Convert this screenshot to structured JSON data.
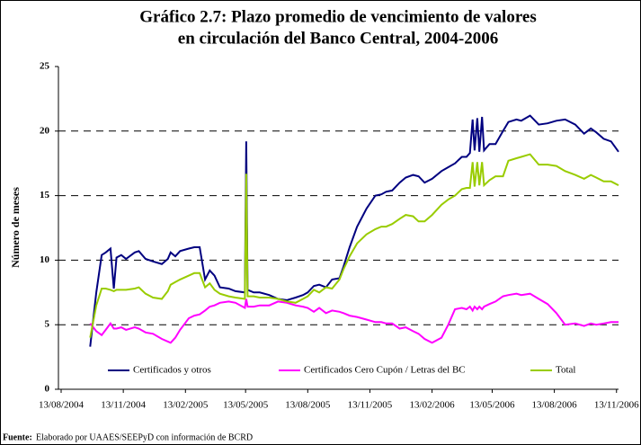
{
  "chart_data": {
    "type": "line",
    "title": [
      "Gráfico 2.7: Plazo promedio de vencimiento de valores",
      "en circulación del Banco Central, 2004-2006"
    ],
    "ylabel": "Número de meses",
    "source_label": "Fuente:",
    "source_text": "Elaborado por UAAES/SEEPyD con información de BCRD",
    "x": [
      "2004-09-25",
      "2004-10-04",
      "2004-10-12",
      "2004-10-18",
      "2004-10-25",
      "2004-10-30",
      "2004-11-03",
      "2004-11-10",
      "2004-11-17",
      "2004-11-30",
      "2004-12-06",
      "2004-12-16",
      "2004-12-27",
      "2005-01-09",
      "2005-01-18",
      "2005-01-22",
      "2005-01-29",
      "2005-02-05",
      "2005-02-18",
      "2005-02-26",
      "2005-03-06",
      "2005-03-14",
      "2005-03-21",
      "2005-03-28",
      "2005-04-05",
      "2005-04-18",
      "2005-04-28",
      "2005-05-12",
      "2005-05-14",
      "2005-05-16",
      "2005-05-25",
      "2005-06-03",
      "2005-06-17",
      "2005-06-30",
      "2005-07-13",
      "2005-07-26",
      "2005-08-06",
      "2005-08-13",
      "2005-08-22",
      "2005-08-30",
      "2005-09-09",
      "2005-09-18",
      "2005-09-29",
      "2005-10-05",
      "2005-10-14",
      "2005-10-25",
      "2005-11-08",
      "2005-11-21",
      "2005-11-30",
      "2005-12-07",
      "2005-12-16",
      "2005-12-27",
      "2006-01-05",
      "2006-01-16",
      "2006-01-24",
      "2006-02-02",
      "2006-02-13",
      "2006-02-27",
      "2006-03-09",
      "2006-03-19",
      "2006-03-29",
      "2006-04-05",
      "2006-04-10",
      "2006-04-14",
      "2006-04-17",
      "2006-04-21",
      "2006-04-24",
      "2006-04-28",
      "2006-05-01",
      "2006-05-09",
      "2006-05-18",
      "2006-05-29",
      "2006-06-06",
      "2006-06-18",
      "2006-06-25",
      "2006-07-08",
      "2006-07-21",
      "2006-08-03",
      "2006-08-16",
      "2006-08-29",
      "2006-09-13",
      "2006-09-26",
      "2006-10-06",
      "2006-10-14",
      "2006-10-25",
      "2006-11-05",
      "2006-11-16"
    ],
    "series": [
      {
        "name": "Certificados y otros",
        "color": "#000080",
        "values": [
          3.3,
          7.5,
          10.4,
          10.6,
          10.9,
          7.8,
          10.2,
          10.4,
          10.1,
          10.6,
          10.7,
          10.1,
          9.9,
          9.7,
          10.1,
          10.6,
          10.3,
          10.7,
          10.9,
          11.0,
          11.0,
          8.5,
          9.2,
          8.8,
          7.9,
          7.8,
          7.6,
          7.5,
          19.2,
          7.7,
          7.5,
          7.5,
          7.3,
          7.0,
          6.9,
          7.1,
          7.3,
          7.5,
          8.0,
          8.1,
          7.9,
          8.5,
          8.6,
          9.5,
          11.0,
          12.6,
          14.0,
          15.0,
          15.1,
          15.3,
          15.4,
          16.0,
          16.4,
          16.6,
          16.5,
          16.0,
          16.3,
          16.9,
          17.2,
          17.5,
          18.0,
          18.0,
          18.3,
          20.9,
          18.5,
          21.0,
          18.4,
          21.1,
          18.5,
          19.0,
          19.0,
          20.0,
          20.7,
          20.9,
          20.8,
          21.2,
          20.5,
          20.6,
          20.8,
          20.9,
          20.5,
          19.8,
          20.2,
          19.9,
          19.4,
          19.2,
          18.4
        ]
      },
      {
        "name": "Certificados Cero Cupón / Letras del BC",
        "color": "#ff00ff",
        "values": [
          5.1,
          4.5,
          4.2,
          4.6,
          5.1,
          4.7,
          4.7,
          4.8,
          4.6,
          4.8,
          4.7,
          4.4,
          4.3,
          3.9,
          3.7,
          3.6,
          4.0,
          4.6,
          5.5,
          5.7,
          5.8,
          6.1,
          6.4,
          6.5,
          6.7,
          6.8,
          6.7,
          6.3,
          7.0,
          6.4,
          6.4,
          6.5,
          6.5,
          6.8,
          6.7,
          6.5,
          6.4,
          6.3,
          6.0,
          6.3,
          5.9,
          6.1,
          6.0,
          5.9,
          5.7,
          5.6,
          5.4,
          5.2,
          5.2,
          5.1,
          5.1,
          4.7,
          4.8,
          4.5,
          4.3,
          3.9,
          3.6,
          4.0,
          5.0,
          6.2,
          6.3,
          6.2,
          6.4,
          6.1,
          6.4,
          6.2,
          6.4,
          6.2,
          6.4,
          6.6,
          6.8,
          7.2,
          7.3,
          7.4,
          7.3,
          7.4,
          7.0,
          6.6,
          5.9,
          5.0,
          5.1,
          4.9,
          5.1,
          5.0,
          5.1,
          5.2,
          5.2
        ]
      },
      {
        "name": "Total",
        "color": "#99cc00",
        "values": [
          4.0,
          6.5,
          7.8,
          7.8,
          7.7,
          7.6,
          7.7,
          7.7,
          7.7,
          7.8,
          7.9,
          7.4,
          7.1,
          7.0,
          7.6,
          8.1,
          8.3,
          8.5,
          8.8,
          9.0,
          9.0,
          7.9,
          8.2,
          7.7,
          7.4,
          7.2,
          7.1,
          7.0,
          16.7,
          7.2,
          7.2,
          7.1,
          7.1,
          7.0,
          6.8,
          6.7,
          7.0,
          7.2,
          7.7,
          7.5,
          7.9,
          7.8,
          8.5,
          9.3,
          10.3,
          11.3,
          12.0,
          12.4,
          12.6,
          12.6,
          12.8,
          13.2,
          13.5,
          13.4,
          13.0,
          13.0,
          13.5,
          14.3,
          14.7,
          15.0,
          15.5,
          15.6,
          15.6,
          17.6,
          15.7,
          17.6,
          15.8,
          17.6,
          15.8,
          16.2,
          16.5,
          16.5,
          17.7,
          17.9,
          18.0,
          18.2,
          17.4,
          17.4,
          17.3,
          16.9,
          16.6,
          16.3,
          16.6,
          16.4,
          16.1,
          16.1,
          15.8
        ]
      }
    ],
    "xlim": [
      "2004-08-09",
      "2006-11-16"
    ],
    "xticks": [
      {
        "value": "2004-08-13",
        "label": "13/08/2004"
      },
      {
        "value": "2004-11-13",
        "label": "13/11/2004"
      },
      {
        "value": "2005-02-13",
        "label": "13/02/2005"
      },
      {
        "value": "2005-05-13",
        "label": "13/05/2005"
      },
      {
        "value": "2005-08-13",
        "label": "13/08/2005"
      },
      {
        "value": "2005-11-13",
        "label": "13/11/2005"
      },
      {
        "value": "2006-02-13",
        "label": "13/02/2006"
      },
      {
        "value": "2006-05-13",
        "label": "13/05/2006"
      },
      {
        "value": "2006-08-13",
        "label": "13/08/2006"
      },
      {
        "value": "2006-11-13",
        "label": "13/11/2006"
      }
    ],
    "ylim": [
      0,
      25
    ],
    "yticks": [
      0,
      5,
      10,
      15,
      20,
      25
    ],
    "grid": true,
    "legend": "bottom"
  }
}
